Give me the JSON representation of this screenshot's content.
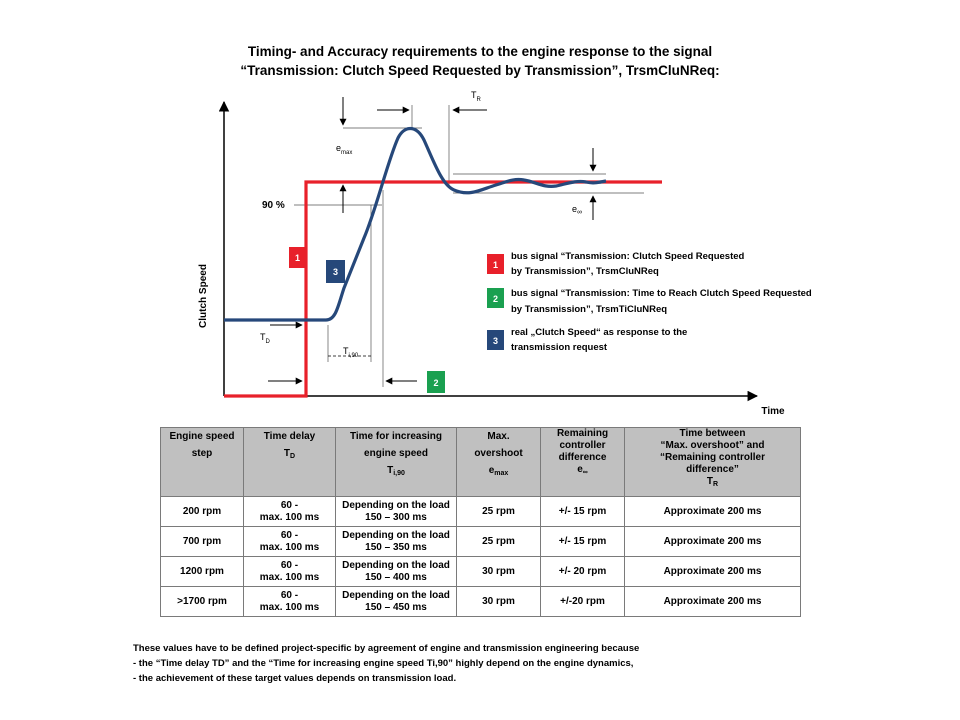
{
  "title": {
    "line1": "Timing- and Accuracy requirements to the engine response to the signal",
    "line2": "“Transmission: Clutch Speed Requested by Transmission”, TrsmCluNReq:"
  },
  "chart_data": {
    "type": "line",
    "ylabel": "Clutch Speed",
    "xlabel": "Time",
    "series": [
      {
        "marker": "1",
        "color": "#e8202a"
      },
      {
        "marker": "2",
        "color": "#1aa050"
      },
      {
        "marker": "3",
        "color": "#26487a"
      }
    ],
    "annotations": {
      "emax": "e",
      "emax_sub": "max",
      "tr": "T",
      "tr_sub": "R",
      "pct90": "90 %",
      "einf": "e",
      "einf_sub": "∞",
      "td": "T",
      "td_sub": "D",
      "ti": "T",
      "ti_sub": "i,90"
    }
  },
  "legend": [
    {
      "marker": "1",
      "color": "#e8202a",
      "line1": "bus signal “Transmission: Clutch Speed Requested",
      "line2": "by Transmission”, TrsmCluNReq"
    },
    {
      "marker": "2",
      "color": "#1aa050",
      "line1": "bus signal “Transmission: Time to Reach Clutch Speed Requested",
      "line2": "by Transmission”, TrsmTiCluNReq"
    },
    {
      "marker": "3",
      "color": "#26487a",
      "line1": "real „Clutch Speed“ as response to the",
      "line2": "transmission request"
    }
  ],
  "table": {
    "headers": {
      "c1": {
        "l1": "Engine speed",
        "l2": "step"
      },
      "c2": {
        "l1": "Time delay",
        "l2": "T",
        "sub": "D"
      },
      "c3": {
        "l1": "Time for increasing",
        "l2": "engine speed",
        "l3": "T",
        "sub": "i,90"
      },
      "c4": {
        "l1": "Max.",
        "l2": "overshoot",
        "l3": "e",
        "sub": "max"
      },
      "c5": {
        "l1": "Remaining",
        "l2": "controller",
        "l3": "difference",
        "l4": "e",
        "sub": "∞"
      },
      "c6": {
        "l1": "Time between",
        "l2": "“Max. overshoot” and",
        "l3": "“Remaining controller",
        "l4": "difference”",
        "l5": "T",
        "sub": "R"
      }
    },
    "rows": [
      {
        "step": "200 rpm",
        "td1": "60 -",
        "td2": "max. 100 ms",
        "ti1": "Depending on the load",
        "ti2": "150 – 300 ms",
        "emax": "25 rpm",
        "einf": "+/- 15 rpm",
        "tr": "Approximate 200 ms"
      },
      {
        "step": "700 rpm",
        "td1": "60 -",
        "td2": "max. 100 ms",
        "ti1": "Depending on the load",
        "ti2": "150 – 350 ms",
        "emax": "25 rpm",
        "einf": "+/- 15 rpm",
        "tr": "Approximate 200 ms"
      },
      {
        "step": "1200 rpm",
        "td1": "60 -",
        "td2": "max. 100 ms",
        "ti1": "Depending on the load",
        "ti2": "150 – 400 ms",
        "emax": "30 rpm",
        "einf": "+/- 20 rpm",
        "tr": "Approximate 200 ms"
      },
      {
        "step": ">1700 rpm",
        "td1": "60 -",
        "td2": "max. 100 ms",
        "ti1": "Depending on the load",
        "ti2": "150 – 450 ms",
        "emax": "30 rpm",
        "einf": "+/-20 rpm",
        "tr": "Approximate 200 ms"
      }
    ]
  },
  "notes": [
    "These values have to be defined project-specific by agreement of engine and transmission engineering because",
    "-  the “Time delay TD” and the “Time for increasing engine speed Ti,90” highly depend on the engine dynamics,",
    "- the achievement of these target values depends on transmission load."
  ]
}
